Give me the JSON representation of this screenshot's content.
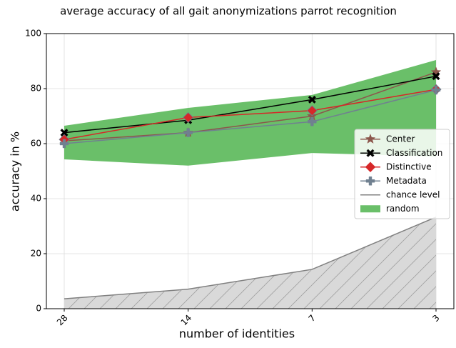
{
  "chart_data": {
    "type": "line",
    "title": "average accuracy of all gait anonymizations parrot recognition",
    "xlabel": "number of identities",
    "ylabel": "accuracy in %",
    "categories": [
      "28",
      "14",
      "7",
      "3"
    ],
    "ylim": [
      0,
      100
    ],
    "yticks": [
      0,
      20,
      40,
      60,
      80,
      100
    ],
    "grid": true,
    "legend": "center right",
    "series": [
      {
        "name": "Center",
        "color": "#8c564b",
        "marker": "star",
        "values": [
          61,
          64,
          70,
          86
        ]
      },
      {
        "name": "Classification",
        "color": "#000000",
        "marker": "x",
        "values": [
          64,
          68.5,
          76,
          84.5
        ]
      },
      {
        "name": "Distinctive",
        "color": "#d62728",
        "marker": "diamond",
        "values": [
          61.5,
          69.5,
          72,
          79.7
        ]
      },
      {
        "name": "Metadata",
        "color": "#708090",
        "marker": "plus",
        "values": [
          60,
          64,
          68,
          79.5
        ]
      },
      {
        "name": "chance level",
        "color": "#808080",
        "fill": "#d9d9d9",
        "hatch": true,
        "values": [
          3.6,
          7.1,
          14.3,
          33.3
        ]
      },
      {
        "name": "random",
        "color": "#6abf69",
        "lower": [
          54.3,
          52,
          56.6,
          55.3
        ],
        "upper": [
          66.5,
          73,
          77.7,
          90.4
        ]
      }
    ]
  }
}
